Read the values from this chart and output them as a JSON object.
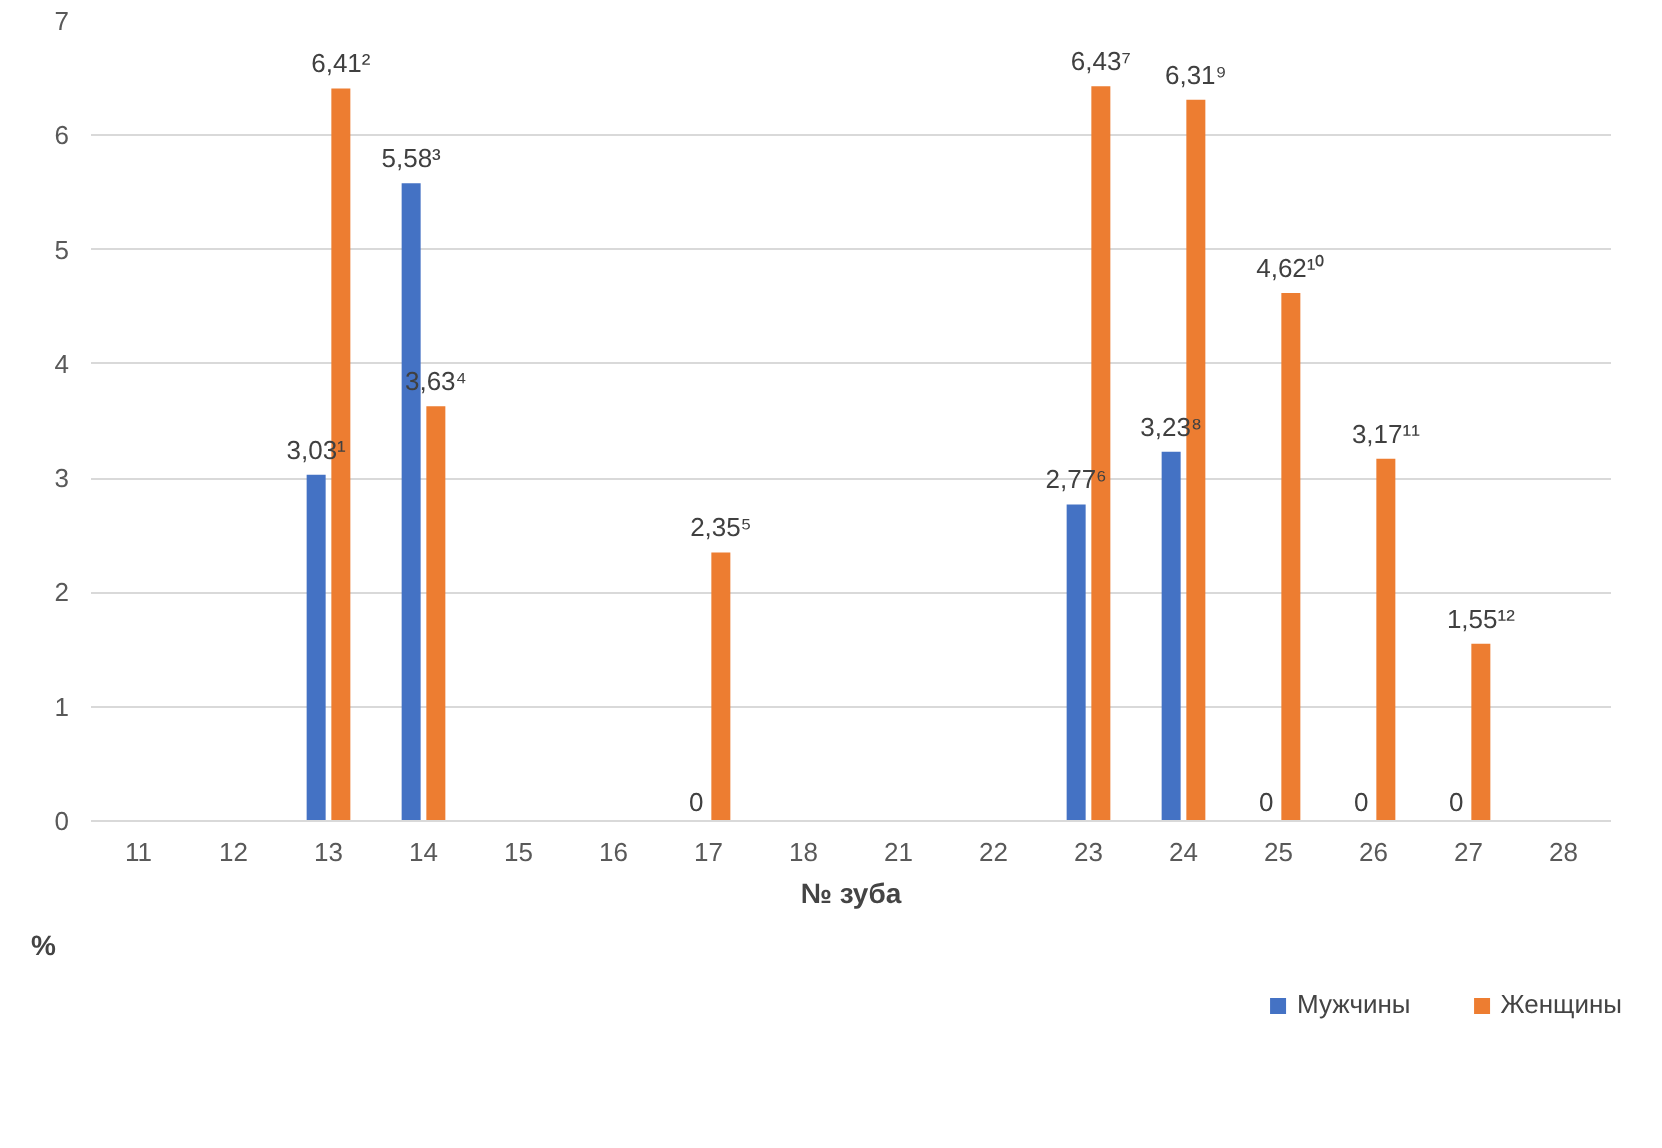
{
  "chart_data": {
    "type": "bar",
    "xlabel": "№ зуба",
    "ylabel": "%",
    "categories": [
      "11",
      "12",
      "13",
      "14",
      "15",
      "16",
      "17",
      "18",
      "21",
      "22",
      "23",
      "24",
      "25",
      "26",
      "27",
      "28"
    ],
    "series": [
      {
        "name": "Мужчины",
        "color": "#4472c4",
        "values": [
          null,
          null,
          3.03,
          5.58,
          null,
          null,
          0,
          null,
          null,
          null,
          2.77,
          3.23,
          0,
          0,
          0,
          null
        ],
        "value_labels": [
          null,
          null,
          "3,03¹",
          "5,58³",
          null,
          null,
          "0",
          null,
          null,
          null,
          "2,77⁶",
          "3,23⁸",
          "0",
          "0",
          "0",
          null
        ]
      },
      {
        "name": "Женщины",
        "color": "#ed7d31",
        "values": [
          null,
          null,
          6.41,
          3.63,
          null,
          null,
          2.35,
          null,
          null,
          null,
          6.43,
          6.31,
          4.62,
          3.17,
          1.55,
          null
        ],
        "value_labels": [
          null,
          null,
          "6,41²",
          "3,63⁴",
          null,
          null,
          "2,35⁵",
          null,
          null,
          null,
          "6,43⁷",
          "6,31⁹",
          "4,62¹⁰",
          "3,17¹¹",
          "1,55¹²",
          null
        ]
      }
    ],
    "ylim": [
      0,
      7
    ],
    "yticks": [
      0,
      1,
      2,
      3,
      4,
      5,
      6,
      7
    ],
    "grid": "y",
    "legend": "bottom right"
  }
}
